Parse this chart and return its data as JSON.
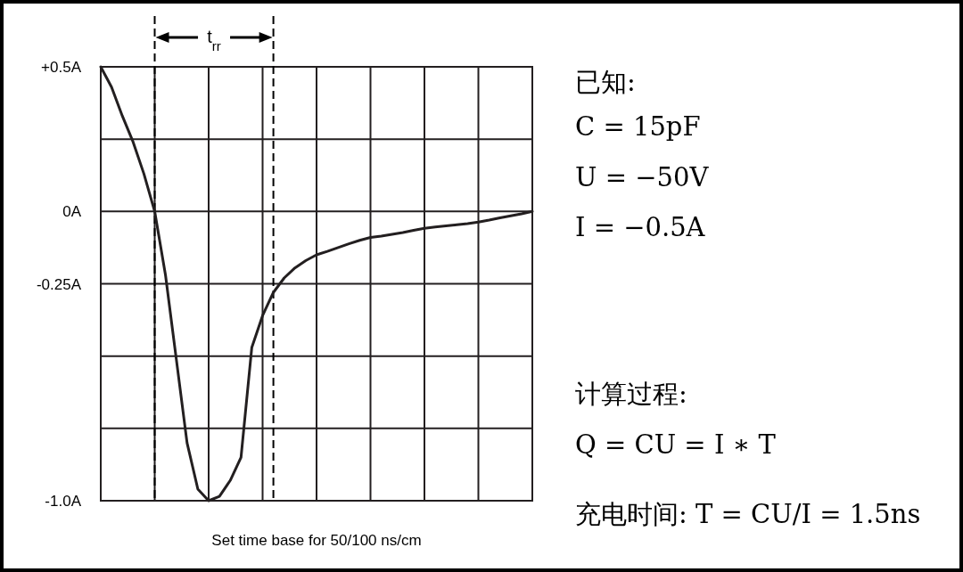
{
  "chart_data": {
    "type": "line",
    "xlabel": "Set time base for 50/100 ns/cm",
    "categories": [
      null,
      null,
      null,
      null,
      null,
      null,
      null,
      null,
      null,
      null,
      null,
      null,
      null,
      null,
      null,
      null,
      null,
      null,
      null,
      null,
      null,
      null,
      null,
      null,
      null,
      null,
      null,
      null,
      null,
      null,
      null,
      null,
      null,
      null,
      null,
      null,
      null,
      null,
      null,
      null,
      null
    ],
    "series": [
      {
        "color": "#231f20",
        "values": [
          0.5,
          0.43,
          0.33,
          0.24,
          0.13,
          0,
          -0.22,
          -0.51,
          -0.8,
          -0.96,
          -1.0,
          -0.985,
          -0.93,
          -0.85,
          -0.47,
          -0.36,
          -0.28,
          -0.23,
          -0.195,
          -0.17,
          -0.15,
          -0.138,
          -0.125,
          -0.112,
          -0.1,
          -0.09,
          -0.085,
          -0.079,
          -0.073,
          -0.065,
          -0.058,
          -0.054,
          -0.05,
          -0.046,
          -0.042,
          -0.037,
          -0.03,
          -0.022,
          -0.015,
          -0.008,
          0
        ]
      }
    ],
    "ylim": [
      -1,
      0.5
    ],
    "yticks": [
      {
        "value": 0.5,
        "label": "+0.5A"
      },
      {
        "value": 0.25,
        "label": null
      },
      {
        "value": 0,
        "label": "0A"
      },
      {
        "value": -0.25,
        "label": "-0.25A"
      },
      {
        "value": -0.5,
        "label": null
      },
      {
        "value": -0.75,
        "label": null
      },
      {
        "value": -1,
        "label": "-1.0A"
      }
    ],
    "tick_labels": "y",
    "grid": true,
    "marker": "none",
    "line_style": "solid",
    "annotations": [
      "t$_{rr}$",
      "已知:",
      "C = 15pF",
      "U = −50V",
      "I = −0.5A",
      "计算过程:",
      "Q = CU = I ∗ T",
      "充电时间: T = CU/I = 1.5ns"
    ]
  }
}
